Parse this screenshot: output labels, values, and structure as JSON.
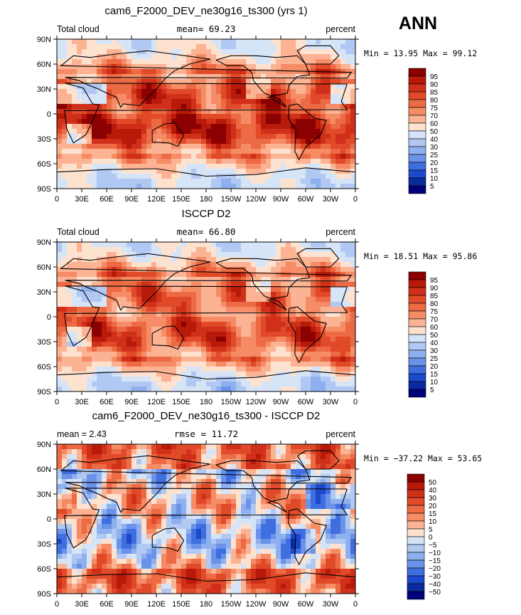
{
  "season": "ANN",
  "charts": [
    {
      "type": "heatmap",
      "title": "cam6_F2000_DEV_ne30g16_ts300 (yrs 1)",
      "left_label": "Total cloud",
      "center_label": "mean=  69.23",
      "right_label": "percent",
      "stats": "Min =  13.95 Max =  99.12",
      "levels": [
        "95",
        "90",
        "85",
        "80",
        "75",
        "70",
        "60",
        "50",
        "40",
        "30",
        "25",
        "20",
        "15",
        "10",
        "5"
      ],
      "colors": [
        "#8b0000",
        "#b81a0a",
        "#d0301a",
        "#e04a28",
        "#ec6a44",
        "#f58c66",
        "#fbb394",
        "#fde2d0",
        "#d6e4f8",
        "#b0c8f2",
        "#8fb0ee",
        "#6a92e8",
        "#3f6ee0",
        "#1c48cc",
        "#0a2aa0",
        "#00007a"
      ],
      "xticks": [
        "0",
        "30E",
        "60E",
        "90E",
        "120E",
        "150E",
        "180",
        "150W",
        "120W",
        "90W",
        "60W",
        "30W",
        "0"
      ],
      "yticks": [
        "90N",
        "60N",
        "30N",
        "0",
        "30S",
        "60S",
        "90S"
      ]
    },
    {
      "type": "heatmap",
      "title": "ISCCP D2",
      "left_label": "Total cloud",
      "center_label": "mean=  66.80",
      "right_label": "percent",
      "stats": "Min =  18.51 Max =  95.86",
      "levels": [
        "95",
        "90",
        "85",
        "80",
        "75",
        "70",
        "60",
        "50",
        "40",
        "30",
        "25",
        "20",
        "15",
        "10",
        "5"
      ],
      "colors": [
        "#8b0000",
        "#b81a0a",
        "#d0301a",
        "#e04a28",
        "#ec6a44",
        "#f58c66",
        "#fbb394",
        "#fde2d0",
        "#d6e4f8",
        "#b0c8f2",
        "#8fb0ee",
        "#6a92e8",
        "#3f6ee0",
        "#1c48cc",
        "#0a2aa0",
        "#00007a"
      ],
      "xticks": [
        "0",
        "30E",
        "60E",
        "90E",
        "120E",
        "150E",
        "180",
        "150W",
        "120W",
        "90W",
        "60W",
        "30W",
        "0"
      ],
      "yticks": [
        "90N",
        "60N",
        "30N",
        "0",
        "30S",
        "60S",
        "90S"
      ]
    },
    {
      "type": "heatmap",
      "title": "cam6_F2000_DEV_ne30g16_ts300 - ISCCP D2",
      "left_label": "mean =    2.43",
      "center_label": "rmse =   11.72",
      "right_label": "percent",
      "stats": "Min = −37.22 Max =  53.65",
      "levels": [
        "50",
        "40",
        "30",
        "20",
        "15",
        "10",
        "5",
        "0",
        "−5",
        "−10",
        "−15",
        "−20",
        "−30",
        "−40",
        "−50"
      ],
      "colors": [
        "#8b0000",
        "#b81a0a",
        "#d0301a",
        "#e04a28",
        "#ec6a44",
        "#f58c66",
        "#fbb394",
        "#fde2d0",
        "#d6e4f8",
        "#b0c8f2",
        "#8fb0ee",
        "#6a92e8",
        "#3f6ee0",
        "#1c48cc",
        "#0a2aa0",
        "#00007a"
      ],
      "xticks": [
        "0",
        "30E",
        "60E",
        "90E",
        "120E",
        "150E",
        "180",
        "150W",
        "120W",
        "90W",
        "60W",
        "30W",
        "0"
      ],
      "yticks": [
        "90N",
        "60N",
        "30N",
        "0",
        "30S",
        "60S",
        "90S"
      ]
    }
  ]
}
